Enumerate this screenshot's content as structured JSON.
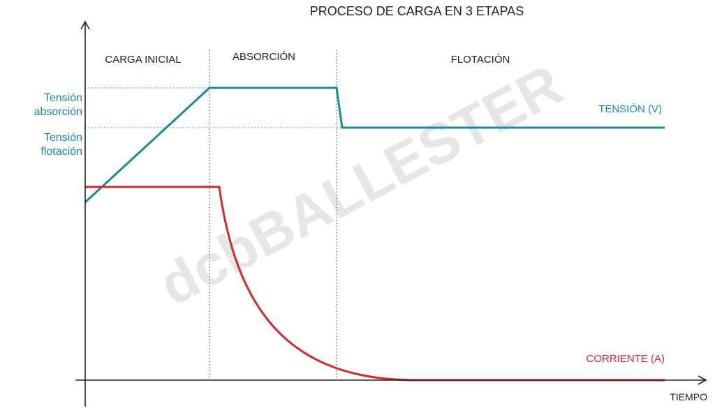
{
  "title": "PROCESO DE CARGA EN 3 ETAPAS",
  "stages": [
    "CARGA INICIAL",
    "ABSORCIÓN",
    "FLOTACIÓN"
  ],
  "levels": [
    [
      "Tensión",
      "absorción"
    ],
    [
      "Tensión",
      "flotación"
    ]
  ],
  "series": [
    "TENSIÓN (V)",
    "CORRIENTE (A)"
  ],
  "x_axis_label": "TIEMPO",
  "watermark": "dcbBALLESTER"
}
